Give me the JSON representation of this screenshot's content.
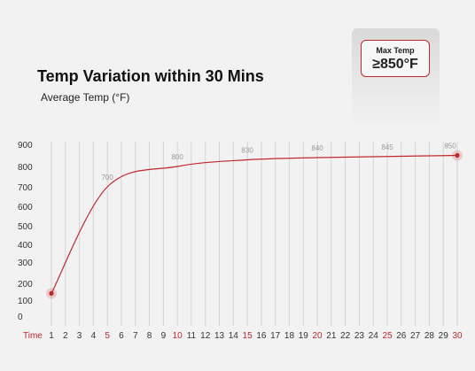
{
  "chart_data": {
    "type": "line",
    "title": "Temp Variation within 30 Mins",
    "subtitle": "Average Temp  (°F)",
    "xlabel": "Time",
    "x": [
      1,
      2,
      3,
      4,
      5,
      6,
      7,
      8,
      9,
      10,
      11,
      12,
      13,
      14,
      15,
      16,
      17,
      18,
      19,
      20,
      21,
      22,
      23,
      24,
      25,
      26,
      27,
      28,
      29,
      30
    ],
    "highlighted_x": [
      5,
      10,
      15,
      20,
      25,
      30
    ],
    "y_ticks": [
      0,
      100,
      200,
      300,
      400,
      500,
      600,
      700,
      800,
      900
    ],
    "series": [
      {
        "name": "",
        "points": [
          [
            1,
            140
          ],
          [
            5,
            700
          ],
          [
            10,
            800
          ],
          [
            15,
            830
          ],
          [
            20,
            840
          ],
          [
            25,
            845
          ],
          [
            30,
            850
          ]
        ],
        "color": "#c0282e"
      }
    ],
    "data_labels": [
      {
        "x": 5,
        "text": "700"
      },
      {
        "x": 10,
        "text": "800"
      },
      {
        "x": 15,
        "text": "830"
      },
      {
        "x": 20,
        "text": "840"
      },
      {
        "x": 25,
        "text": "845"
      },
      {
        "x": 30,
        "text": "850"
      }
    ],
    "grid": "vertical",
    "callout": {
      "label": "Max Temp",
      "value": "≥850°F"
    }
  },
  "colors": {
    "accent": "#c0282e",
    "background": "#f2f2f2",
    "grid": "#d4d4d4"
  }
}
